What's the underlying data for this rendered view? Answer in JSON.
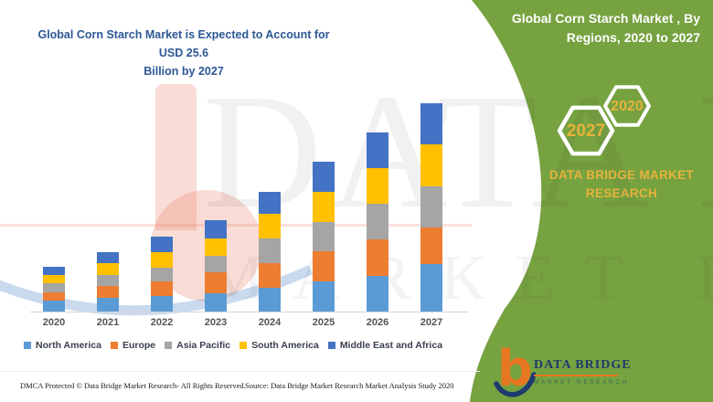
{
  "header": {
    "chart_title_line1": "Global Corn Starch Market is Expected to Account for USD 25.6",
    "chart_title_line2": "Billion by 2027",
    "panel_title_line1": "Global Corn Starch Market , By",
    "panel_title_line2": "Regions, 2020 to 2027"
  },
  "panel": {
    "hexagon_labels": [
      "2027",
      "2020"
    ],
    "brand_line1": "DATA BRIDGE MARKET",
    "brand_line2": "RESEARCH",
    "colors": {
      "background_green": "#76A240",
      "gold": "#E6B33C"
    }
  },
  "chart_data": {
    "type": "bar",
    "stacked": true,
    "title": "Global Corn Starch Market is Expected to Account for USD 25.6 Billion by 2027",
    "unit": "USD Billion",
    "categories": [
      "2020",
      "2021",
      "2022",
      "2023",
      "2024",
      "2025",
      "2026",
      "2027"
    ],
    "series": [
      {
        "name": "North America",
        "color": "#5B9BD5",
        "values": [
          1.3,
          1.7,
          1.9,
          2.2,
          2.9,
          3.7,
          4.4,
          5.8
        ]
      },
      {
        "name": "Europe",
        "color": "#ED7D31",
        "values": [
          1.1,
          1.4,
          1.8,
          2.6,
          3.1,
          3.7,
          4.5,
          4.5
        ]
      },
      {
        "name": "Asia Pacific",
        "color": "#A5A5A5",
        "values": [
          1.1,
          1.4,
          1.7,
          2.1,
          3.0,
          3.6,
          4.3,
          5.1
        ]
      },
      {
        "name": "South America",
        "color": "#FFC000",
        "values": [
          1.0,
          1.4,
          1.9,
          2.1,
          3.0,
          3.7,
          4.4,
          5.2
        ]
      },
      {
        "name": "Middle East and Africa",
        "color": "#4472C4",
        "values": [
          1.0,
          1.4,
          1.9,
          2.2,
          2.7,
          3.7,
          4.4,
          5.0
        ]
      }
    ],
    "totals_by_year": [
      5.5,
      7.3,
      9.2,
      11.2,
      14.7,
      18.4,
      22.0,
      25.6
    ],
    "ylim": [
      0,
      26
    ],
    "y_axis_shown": false,
    "legend_position": "bottom"
  },
  "watermark": {
    "big_letter": "b",
    "row1": "DATA BRIDGE",
    "row2": "MARKET RESEARCH"
  },
  "logo": {
    "mark_letter": "b",
    "line1": "DATA BRIDGE",
    "line2": "MARKET RESEARCH"
  },
  "footer": {
    "left": "DMCA Protected © Data Bridge Market Research- All Rights Reserved.",
    "right": "Source: Data Bridge Market Research Market Analysis Study 2020"
  }
}
